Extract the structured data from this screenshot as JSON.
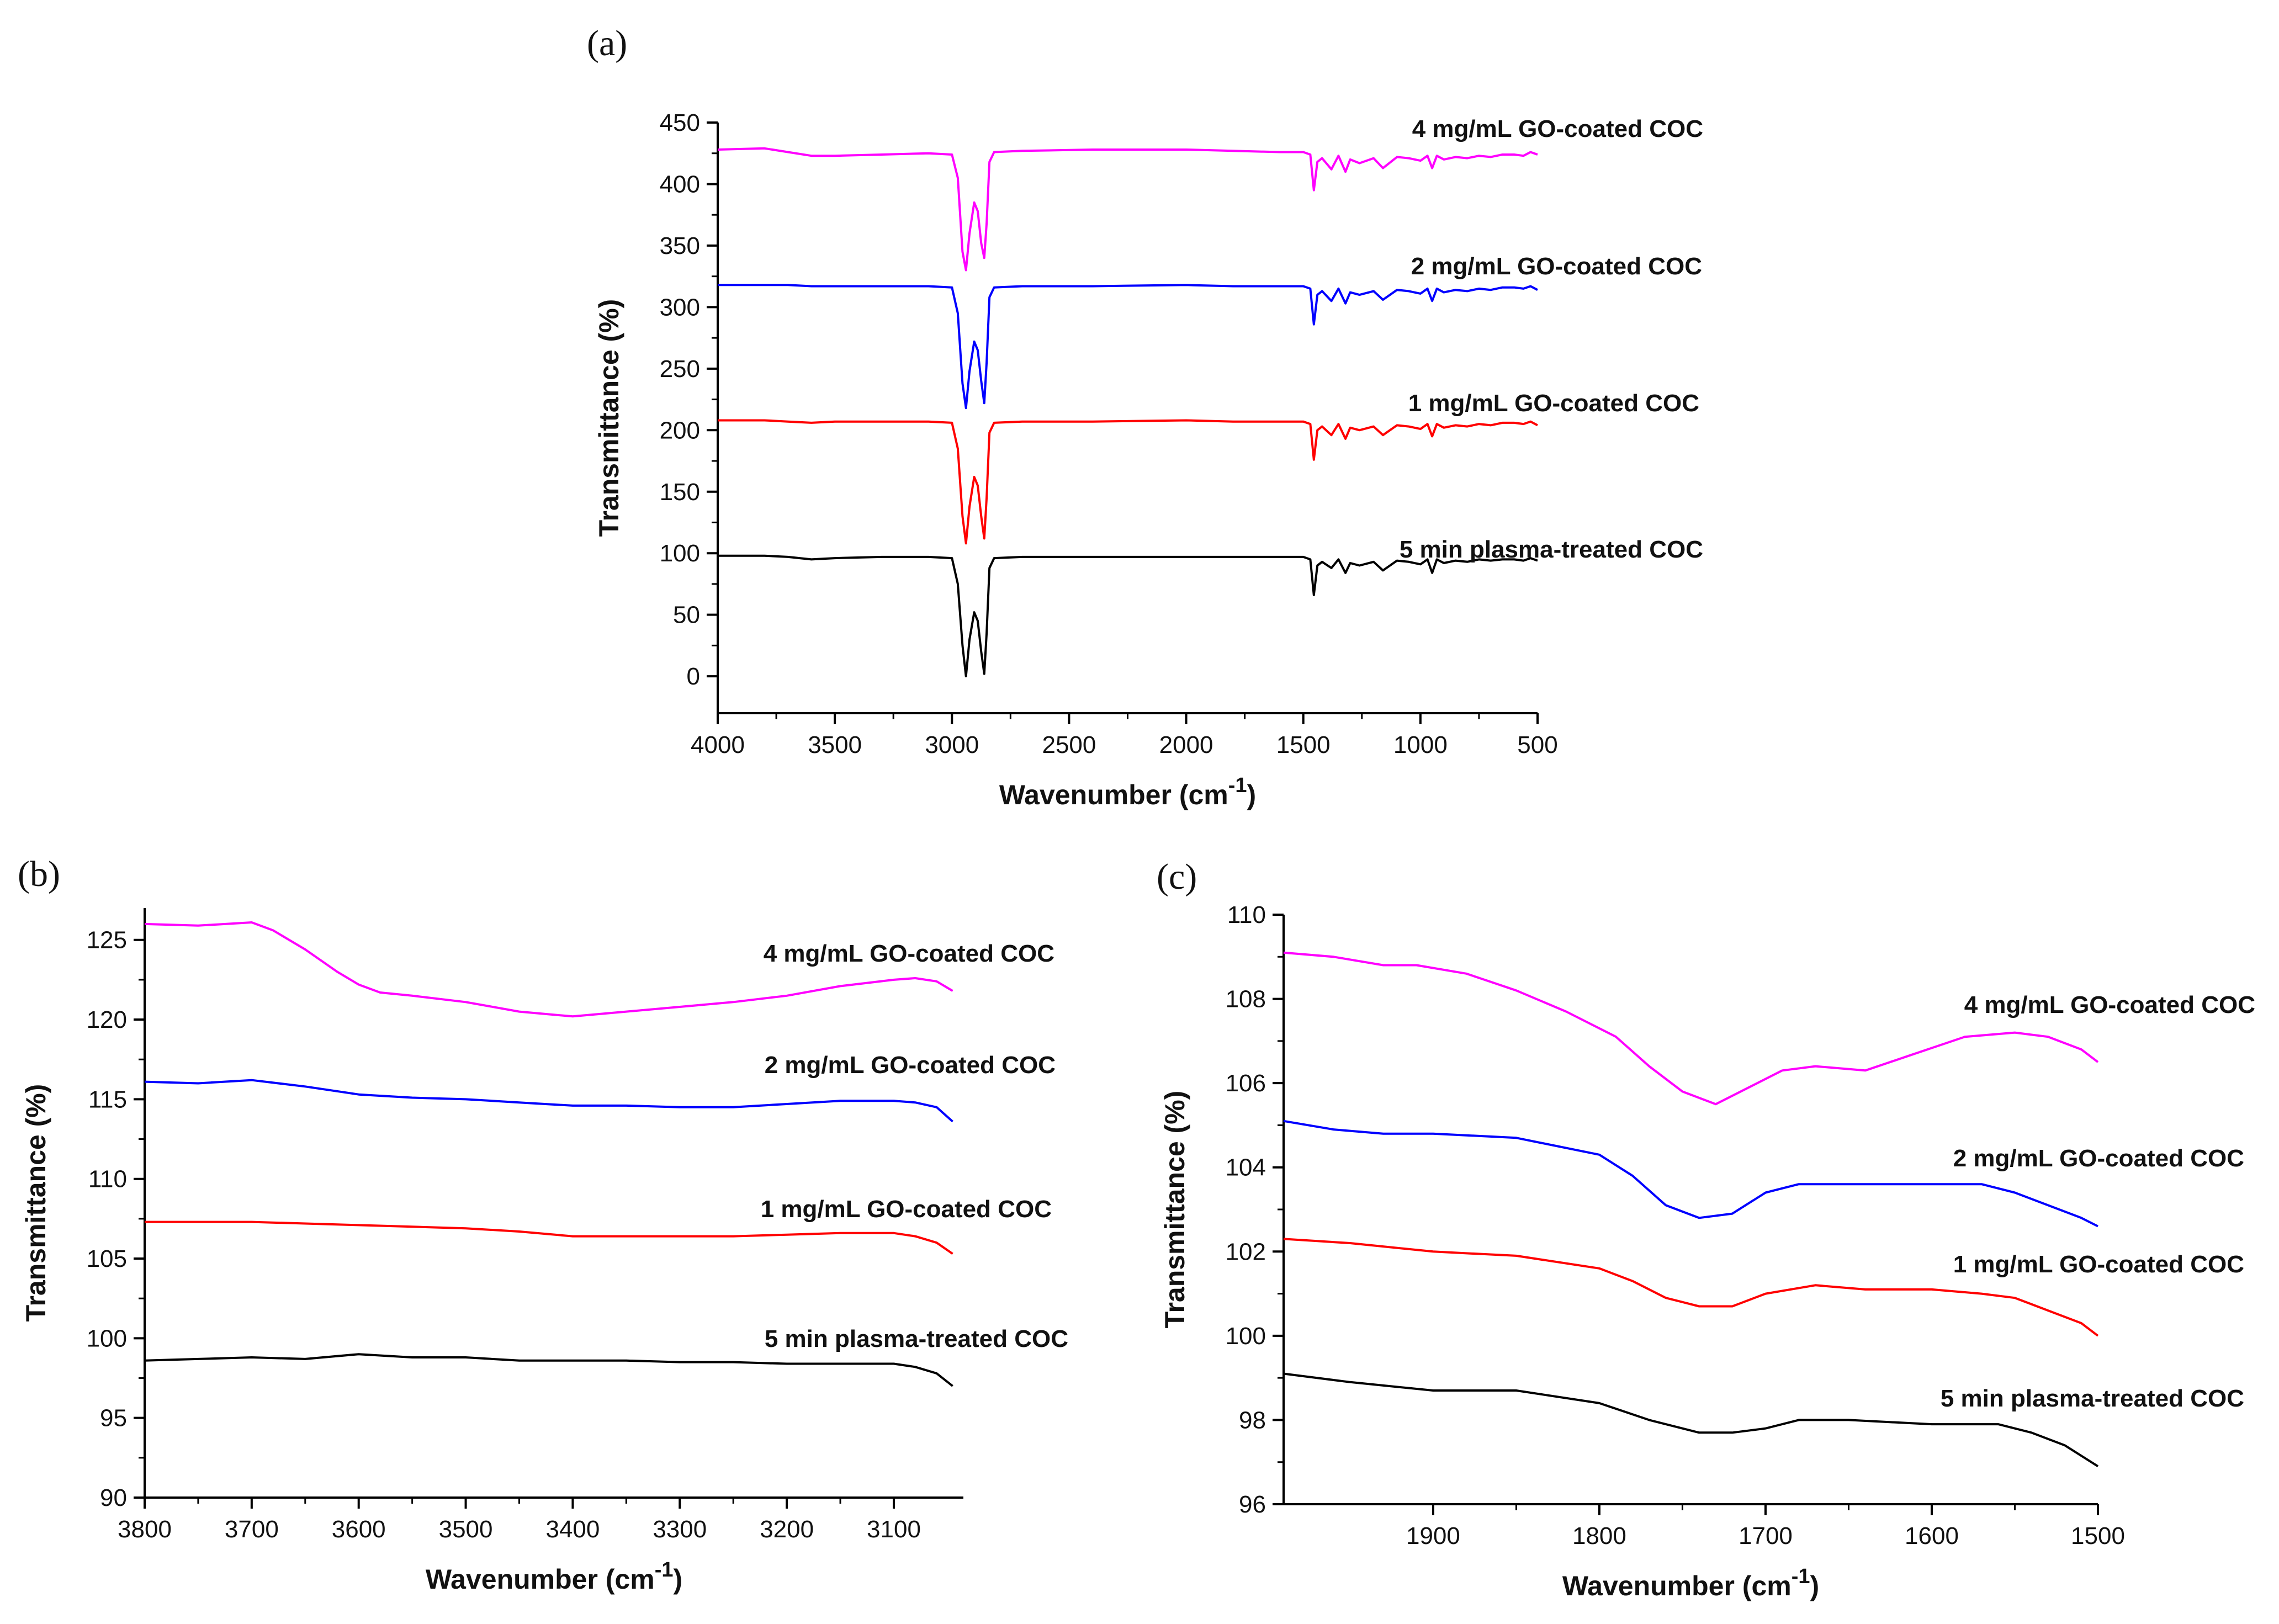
{
  "chart_data": [
    {
      "type": "line",
      "panel_label": "(a)",
      "xlabel": "Wavenumber (cm",
      "xlabel_sup": "-1",
      "xlabel_end": ")",
      "ylabel": "Transmittance (%)",
      "xlim": [
        4000,
        500
      ],
      "ylim": [
        -30,
        450
      ],
      "xticks": [
        4000,
        3500,
        3000,
        2500,
        2000,
        1500,
        1000,
        500
      ],
      "yticks": [
        0,
        50,
        100,
        150,
        200,
        250,
        300,
        350,
        400,
        450
      ],
      "series": [
        {
          "name": "5 min plasma-treated COC",
          "color": "#000000",
          "x": [
            4000,
            3800,
            3700,
            3600,
            3500,
            3300,
            3100,
            3000,
            2975,
            2955,
            2940,
            2925,
            2905,
            2890,
            2875,
            2862,
            2852,
            2840,
            2820,
            2700,
            2400,
            2000,
            1800,
            1600,
            1500,
            1470,
            1455,
            1440,
            1420,
            1380,
            1350,
            1320,
            1300,
            1260,
            1200,
            1160,
            1100,
            1050,
            1000,
            970,
            950,
            930,
            900,
            850,
            800,
            750,
            700,
            650,
            600,
            560,
            530,
            500
          ],
          "y": [
            98,
            98,
            97,
            95,
            96,
            97,
            97,
            96,
            75,
            25,
            0,
            30,
            52,
            45,
            20,
            2,
            35,
            88,
            96,
            97,
            97,
            97,
            97,
            97,
            97,
            95,
            66,
            90,
            93,
            88,
            95,
            84,
            92,
            90,
            93,
            86,
            94,
            93,
            91,
            95,
            84,
            95,
            92,
            94,
            93,
            95,
            94,
            95,
            95,
            94,
            96,
            94
          ]
        },
        {
          "name": "1 mg/mL GO-coated COC",
          "color": "#ff0000",
          "x": [
            4000,
            3800,
            3700,
            3600,
            3500,
            3300,
            3100,
            3000,
            2975,
            2955,
            2940,
            2925,
            2905,
            2890,
            2875,
            2862,
            2852,
            2840,
            2820,
            2700,
            2400,
            2000,
            1800,
            1600,
            1500,
            1470,
            1455,
            1440,
            1420,
            1380,
            1350,
            1320,
            1300,
            1260,
            1200,
            1160,
            1100,
            1050,
            1000,
            970,
            950,
            930,
            900,
            850,
            800,
            750,
            700,
            650,
            600,
            560,
            530,
            500
          ],
          "y": [
            208,
            208,
            207,
            206,
            207,
            207,
            207,
            206,
            185,
            130,
            108,
            138,
            162,
            155,
            130,
            112,
            145,
            198,
            206,
            207,
            207,
            208,
            207,
            207,
            207,
            205,
            176,
            200,
            203,
            196,
            205,
            193,
            202,
            200,
            203,
            196,
            204,
            203,
            201,
            205,
            195,
            205,
            202,
            204,
            203,
            205,
            204,
            206,
            206,
            205,
            207,
            204
          ]
        },
        {
          "name": "2 mg/mL GO-coated COC",
          "color": "#0000ff",
          "x": [
            4000,
            3800,
            3700,
            3600,
            3500,
            3300,
            3100,
            3000,
            2975,
            2955,
            2940,
            2925,
            2905,
            2890,
            2875,
            2862,
            2852,
            2840,
            2820,
            2700,
            2400,
            2000,
            1800,
            1600,
            1500,
            1470,
            1455,
            1440,
            1420,
            1380,
            1350,
            1320,
            1300,
            1260,
            1200,
            1160,
            1100,
            1050,
            1000,
            970,
            950,
            930,
            900,
            850,
            800,
            750,
            700,
            650,
            600,
            560,
            530,
            500
          ],
          "y": [
            318,
            318,
            318,
            317,
            317,
            317,
            317,
            316,
            295,
            238,
            218,
            248,
            272,
            265,
            240,
            222,
            255,
            308,
            316,
            317,
            317,
            318,
            317,
            317,
            317,
            315,
            286,
            310,
            313,
            305,
            315,
            303,
            312,
            310,
            313,
            306,
            314,
            313,
            311,
            315,
            305,
            315,
            312,
            314,
            313,
            315,
            314,
            316,
            316,
            315,
            317,
            314
          ]
        },
        {
          "name": "4 mg/mL GO-coated COC",
          "color": "#ff00ff",
          "x": [
            4000,
            3800,
            3700,
            3600,
            3500,
            3300,
            3100,
            3000,
            2975,
            2955,
            2940,
            2925,
            2905,
            2890,
            2875,
            2862,
            2852,
            2840,
            2820,
            2700,
            2400,
            2000,
            1800,
            1600,
            1500,
            1470,
            1455,
            1440,
            1420,
            1380,
            1350,
            1320,
            1300,
            1260,
            1200,
            1160,
            1100,
            1050,
            1000,
            970,
            950,
            930,
            900,
            850,
            800,
            750,
            700,
            650,
            600,
            560,
            530,
            500
          ],
          "y": [
            428,
            429,
            426,
            423,
            423,
            424,
            425,
            424,
            405,
            345,
            330,
            360,
            385,
            378,
            352,
            340,
            368,
            418,
            426,
            427,
            428,
            428,
            427,
            426,
            426,
            424,
            395,
            418,
            421,
            412,
            423,
            410,
            420,
            417,
            421,
            413,
            422,
            421,
            419,
            423,
            413,
            423,
            420,
            422,
            421,
            423,
            422,
            424,
            424,
            423,
            426,
            424
          ]
        }
      ]
    },
    {
      "type": "line",
      "panel_label": "(b)",
      "xlabel": "Wavenumber (cm",
      "xlabel_sup": "-1",
      "xlabel_end": ")",
      "ylabel": "Transmittance (%)",
      "xlim": [
        3800,
        3035
      ],
      "ylim": [
        90,
        127
      ],
      "xticks": [
        3800,
        3700,
        3600,
        3500,
        3400,
        3300,
        3200,
        3100
      ],
      "yticks": [
        90,
        95,
        100,
        105,
        110,
        115,
        120,
        125
      ],
      "series": [
        {
          "name": "5 min plasma-treated COC",
          "color": "#000000",
          "x": [
            3800,
            3750,
            3700,
            3650,
            3600,
            3550,
            3500,
            3450,
            3400,
            3350,
            3300,
            3250,
            3200,
            3150,
            3100,
            3080,
            3060,
            3045
          ],
          "y": [
            98.6,
            98.7,
            98.8,
            98.7,
            99.0,
            98.8,
            98.8,
            98.6,
            98.6,
            98.6,
            98.5,
            98.5,
            98.4,
            98.4,
            98.4,
            98.2,
            97.8,
            97.0
          ]
        },
        {
          "name": "1 mg/mL GO-coated COC",
          "color": "#ff0000",
          "x": [
            3800,
            3750,
            3700,
            3650,
            3600,
            3550,
            3500,
            3450,
            3400,
            3350,
            3300,
            3250,
            3200,
            3150,
            3100,
            3080,
            3060,
            3045
          ],
          "y": [
            107.3,
            107.3,
            107.3,
            107.2,
            107.1,
            107.0,
            106.9,
            106.7,
            106.4,
            106.4,
            106.4,
            106.4,
            106.5,
            106.6,
            106.6,
            106.4,
            106.0,
            105.3
          ]
        },
        {
          "name": "2 mg/mL GO-coated COC",
          "color": "#0000ff",
          "x": [
            3800,
            3750,
            3700,
            3650,
            3600,
            3550,
            3500,
            3450,
            3400,
            3350,
            3300,
            3250,
            3200,
            3150,
            3100,
            3080,
            3060,
            3045
          ],
          "y": [
            116.1,
            116.0,
            116.2,
            115.8,
            115.3,
            115.1,
            115.0,
            114.8,
            114.6,
            114.6,
            114.5,
            114.5,
            114.7,
            114.9,
            114.9,
            114.8,
            114.5,
            113.6
          ]
        },
        {
          "name": "4 mg/mL GO-coated COC",
          "color": "#ff00ff",
          "x": [
            3800,
            3750,
            3700,
            3680,
            3650,
            3620,
            3600,
            3580,
            3550,
            3500,
            3450,
            3400,
            3350,
            3300,
            3250,
            3200,
            3150,
            3100,
            3080,
            3060,
            3045
          ],
          "y": [
            126.0,
            125.9,
            126.1,
            125.6,
            124.4,
            123.0,
            122.2,
            121.7,
            121.5,
            121.1,
            120.5,
            120.2,
            120.5,
            120.8,
            121.1,
            121.5,
            122.1,
            122.5,
            122.6,
            122.4,
            121.8
          ]
        }
      ]
    },
    {
      "type": "line",
      "panel_label": "(c)",
      "xlabel": "Wavenumber (cm",
      "xlabel_sup": "-1",
      "xlabel_end": ")",
      "ylabel": "Transmittance (%)",
      "xlim": [
        1990,
        1500
      ],
      "ylim": [
        96,
        110
      ],
      "xticks": [
        1900,
        1800,
        1700,
        1600,
        1500
      ],
      "yticks": [
        96,
        98,
        100,
        102,
        104,
        106,
        108,
        110
      ],
      "series": [
        {
          "name": "5 min plasma-treated COC",
          "color": "#000000",
          "x": [
            1990,
            1950,
            1900,
            1850,
            1800,
            1770,
            1740,
            1720,
            1700,
            1680,
            1650,
            1600,
            1560,
            1540,
            1520,
            1500
          ],
          "y": [
            99.1,
            98.9,
            98.7,
            98.7,
            98.4,
            98.0,
            97.7,
            97.7,
            97.8,
            98.0,
            98.0,
            97.9,
            97.9,
            97.7,
            97.4,
            96.9
          ]
        },
        {
          "name": "1 mg/mL GO-coated COC",
          "color": "#ff0000",
          "x": [
            1990,
            1950,
            1900,
            1850,
            1800,
            1780,
            1760,
            1740,
            1720,
            1700,
            1670,
            1640,
            1600,
            1570,
            1550,
            1530,
            1510,
            1500
          ],
          "y": [
            102.3,
            102.2,
            102.0,
            101.9,
            101.6,
            101.3,
            100.9,
            100.7,
            100.7,
            101.0,
            101.2,
            101.1,
            101.1,
            101.0,
            100.9,
            100.6,
            100.3,
            100.0
          ]
        },
        {
          "name": "2 mg/mL GO-coated COC",
          "color": "#0000ff",
          "x": [
            1990,
            1960,
            1930,
            1900,
            1850,
            1800,
            1780,
            1760,
            1740,
            1720,
            1700,
            1680,
            1650,
            1600,
            1570,
            1550,
            1530,
            1510,
            1500
          ],
          "y": [
            105.1,
            104.9,
            104.8,
            104.8,
            104.7,
            104.3,
            103.8,
            103.1,
            102.8,
            102.9,
            103.4,
            103.6,
            103.6,
            103.6,
            103.6,
            103.4,
            103.1,
            102.8,
            102.6
          ]
        },
        {
          "name": "4 mg/mL GO-coated COC",
          "color": "#ff00ff",
          "x": [
            1990,
            1960,
            1930,
            1910,
            1880,
            1850,
            1820,
            1790,
            1770,
            1750,
            1730,
            1710,
            1690,
            1670,
            1640,
            1610,
            1580,
            1550,
            1530,
            1510,
            1500
          ],
          "y": [
            109.1,
            109.0,
            108.8,
            108.8,
            108.6,
            108.2,
            107.7,
            107.1,
            106.4,
            105.8,
            105.5,
            105.9,
            106.3,
            106.4,
            106.3,
            106.7,
            107.1,
            107.2,
            107.1,
            106.8,
            106.5
          ]
        }
      ]
    }
  ]
}
